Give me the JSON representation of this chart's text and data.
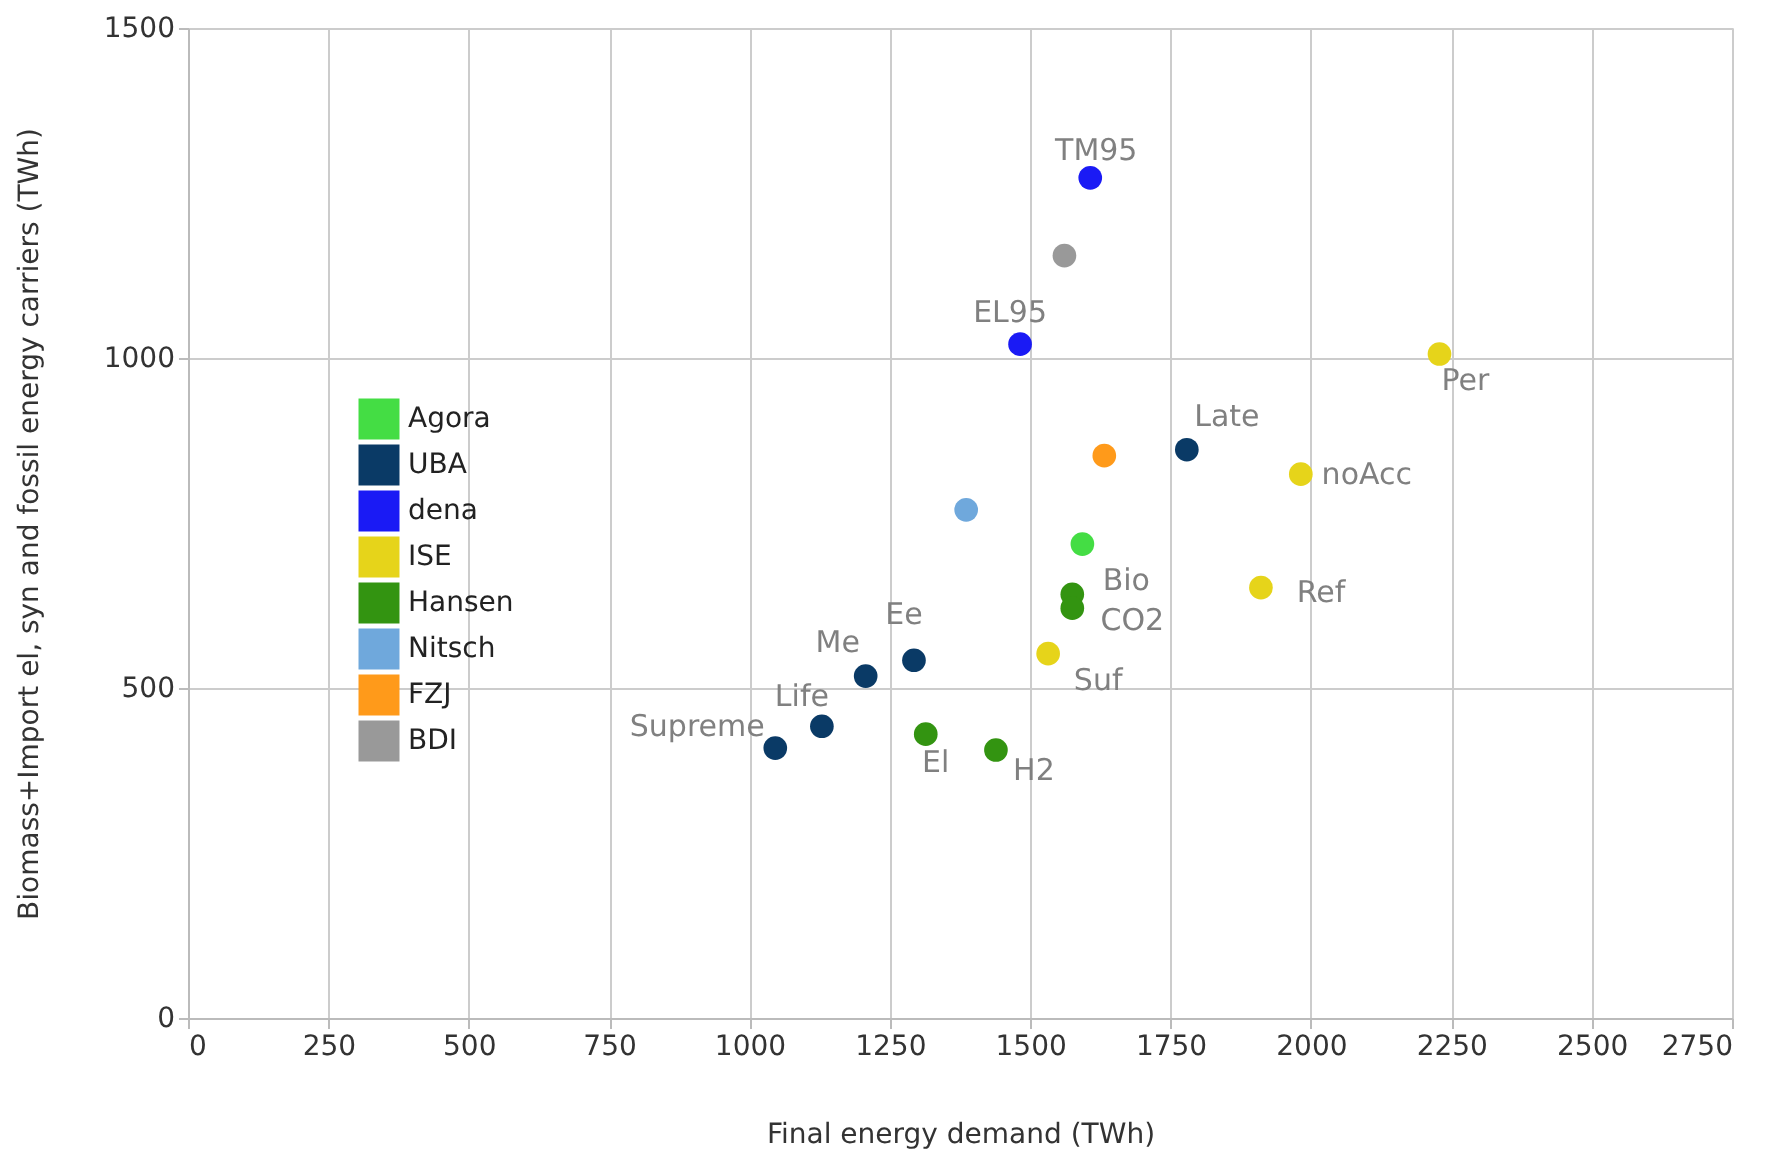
{
  "chart_data": {
    "type": "scatter",
    "xlabel": "Final energy demand (TWh)",
    "ylabel": "Biomass+Import el, syn and fossil energy carriers (TWh)",
    "xlim": [
      0,
      2750
    ],
    "xticks": [
      0,
      250,
      500,
      750,
      1000,
      1250,
      1500,
      1750,
      2000,
      2250,
      2500,
      2750
    ],
    "ylim": [
      0,
      1500
    ],
    "yticks": [
      0,
      500,
      1000,
      1500
    ],
    "grid": true,
    "legend": "left",
    "marker": "circle",
    "series": [
      {
        "name": "Agora",
        "color": "#44dd44",
        "x": [
          1593
        ],
        "values": [
          718
        ]
      },
      {
        "name": "UBA",
        "color": "#0a3a66",
        "x": [
          1779,
          1293,
          1207,
          1129,
          1046
        ],
        "values": [
          861,
          542,
          518,
          442,
          409
        ]
      },
      {
        "name": "dena",
        "color": "#1a1af5",
        "x": [
          1607,
          1482
        ],
        "values": [
          1273,
          1021
        ]
      },
      {
        "name": "ISE",
        "color": "#e6d41a",
        "x": [
          2229,
          1982,
          1911,
          1532
        ],
        "values": [
          1006,
          824,
          652,
          552
        ]
      },
      {
        "name": "Hansen",
        "color": "#339411",
        "x": [
          1575,
          1575,
          1314,
          1439
        ],
        "values": [
          642,
          621,
          430,
          406
        ]
      },
      {
        "name": "Nitsch",
        "color": "#6fa8dc",
        "x": [
          1386
        ],
        "values": [
          770
        ]
      },
      {
        "name": "FZJ",
        "color": "#ff9a1a",
        "x": [
          1632
        ],
        "values": [
          852
        ]
      },
      {
        "name": "BDI",
        "color": "#999999",
        "x": [
          1561
        ],
        "values": [
          1155
        ]
      }
    ],
    "annotations": [
      {
        "text": "TM95",
        "x": 1607,
        "y": 1273
      },
      {
        "text": "EL95",
        "x": 1482,
        "y": 1021
      },
      {
        "text": "Per",
        "x": 2229,
        "y": 1006
      },
      {
        "text": "Late",
        "x": 1779,
        "y": 861
      },
      {
        "text": "noAcc",
        "x": 1982,
        "y": 824
      },
      {
        "text": "Bio",
        "x": 1575,
        "y": 642
      },
      {
        "text": "CO2",
        "x": 1575,
        "y": 621
      },
      {
        "text": "Ref",
        "x": 1911,
        "y": 652
      },
      {
        "text": "Suf",
        "x": 1532,
        "y": 552
      },
      {
        "text": "Ee",
        "x": 1293,
        "y": 542
      },
      {
        "text": "Me",
        "x": 1207,
        "y": 518
      },
      {
        "text": "Life",
        "x": 1129,
        "y": 442
      },
      {
        "text": "Supreme",
        "x": 1046,
        "y": 409
      },
      {
        "text": "El",
        "x": 1314,
        "y": 430
      },
      {
        "text": "H2",
        "x": 1439,
        "y": 406
      }
    ]
  }
}
